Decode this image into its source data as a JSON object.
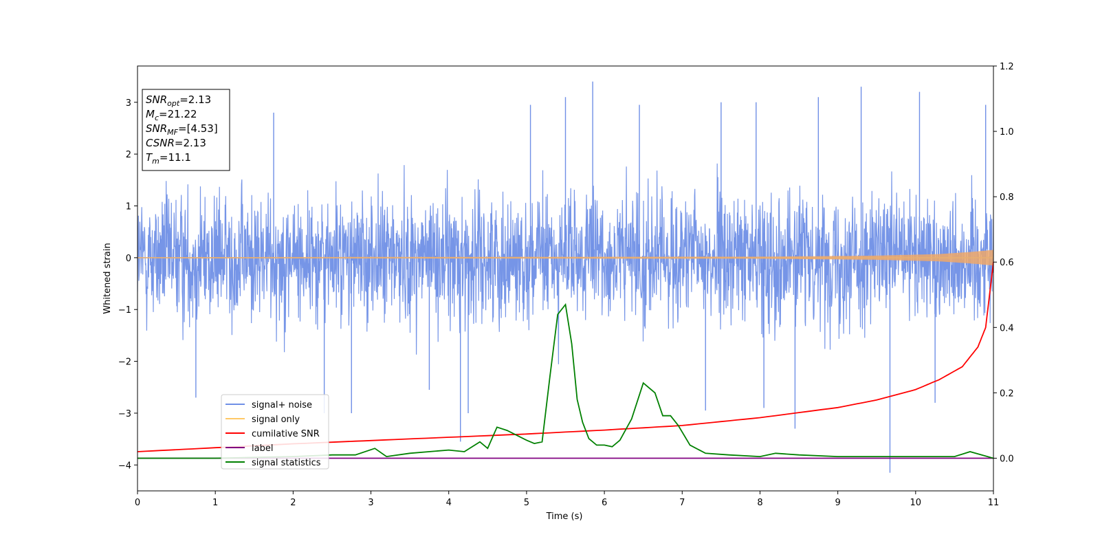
{
  "chart_data": {
    "type": "line",
    "xlabel": "Time (s)",
    "ylabel": "Whitened strain",
    "xlim": [
      0,
      11
    ],
    "ylim_left": [
      -4.5,
      3.7
    ],
    "ylim_right": [
      -0.1,
      1.2
    ],
    "x_ticks": [
      "0",
      "1",
      "2",
      "3",
      "4",
      "5",
      "6",
      "7",
      "8",
      "9",
      "10",
      "11"
    ],
    "y_ticks_left": [
      "3",
      "2",
      "1",
      "0",
      "−1",
      "−2",
      "−3",
      "−4"
    ],
    "y_ticks_right": [
      "1.2",
      "1.0",
      "0.8",
      "0.6",
      "0.4",
      "0.2",
      "0.0"
    ],
    "info_box": [
      {
        "base": "SNR",
        "sub": "opt",
        "rest": "=2.13"
      },
      {
        "base": "M",
        "sub": "c",
        "rest": "=21.22"
      },
      {
        "base": "SNR",
        "sub": "MF",
        "rest": "=[4.53]"
      },
      {
        "base": "CSNR",
        "sub": "",
        "rest": "=2.13"
      },
      {
        "base": "T",
        "sub": "m",
        "rest": "=11.1"
      }
    ],
    "legend": {
      "placement": "lower-left",
      "entries": [
        {
          "label": "signal+ noise",
          "color": "#6f8fe6"
        },
        {
          "label": "signal only",
          "color": "#ffc866"
        },
        {
          "label": "cumilative SNR",
          "color": "#ff0000"
        },
        {
          "label": "label",
          "color": "#800080"
        },
        {
          "label": "signal statistics",
          "color": "#008000"
        }
      ]
    },
    "series": [
      {
        "name": "signal+ noise",
        "axis": "left",
        "color": "#6f8fe6",
        "description_envelope": {
          "typical_amplitude": 1.6,
          "max": 3.4,
          "min": -4.15
        },
        "spikes": [
          [
            0.75,
            -2.7
          ],
          [
            1.75,
            2.8
          ],
          [
            2.4,
            -3.0
          ],
          [
            2.75,
            -3.0
          ],
          [
            3.75,
            -2.55
          ],
          [
            4.15,
            -3.55
          ],
          [
            4.25,
            -3.0
          ],
          [
            5.05,
            2.95
          ],
          [
            5.5,
            3.1
          ],
          [
            5.85,
            3.4
          ],
          [
            6.45,
            2.95
          ],
          [
            7.3,
            -2.95
          ],
          [
            7.5,
            3.0
          ],
          [
            7.95,
            3.0
          ],
          [
            8.05,
            -2.9
          ],
          [
            8.45,
            -3.3
          ],
          [
            8.75,
            3.1
          ],
          [
            9.3,
            3.3
          ],
          [
            9.67,
            -4.15
          ],
          [
            10.05,
            3.2
          ],
          [
            10.25,
            -2.8
          ],
          [
            10.9,
            2.95
          ]
        ]
      },
      {
        "name": "signal only",
        "axis": "left",
        "color": "#ffc866",
        "envelope": [
          [
            0,
            0.01
          ],
          [
            8.0,
            0.02
          ],
          [
            9.5,
            0.04
          ],
          [
            10.3,
            0.07
          ],
          [
            10.7,
            0.11
          ],
          [
            11.0,
            0.15
          ]
        ]
      },
      {
        "name": "cumilative SNR",
        "axis": "right",
        "color": "#ff0000",
        "x": [
          0,
          1,
          2,
          3,
          4,
          5,
          6,
          7,
          8,
          9,
          9.5,
          10,
          10.3,
          10.6,
          10.8,
          10.9,
          11.0
        ],
        "y": [
          0.02,
          0.032,
          0.044,
          0.054,
          0.064,
          0.074,
          0.086,
          0.1,
          0.124,
          0.155,
          0.178,
          0.21,
          0.24,
          0.28,
          0.34,
          0.4,
          0.6
        ]
      },
      {
        "name": "label",
        "axis": "right",
        "color": "#800080",
        "x": [
          0,
          11
        ],
        "y": [
          0,
          0
        ]
      },
      {
        "name": "signal statistics",
        "axis": "right",
        "color": "#008000",
        "x": [
          0,
          1,
          2,
          2.5,
          2.8,
          3.05,
          3.2,
          3.5,
          4.0,
          4.2,
          4.4,
          4.5,
          4.62,
          4.75,
          5.0,
          5.1,
          5.2,
          5.3,
          5.4,
          5.5,
          5.58,
          5.65,
          5.72,
          5.8,
          5.9,
          6.0,
          6.1,
          6.2,
          6.35,
          6.5,
          6.65,
          6.75,
          6.85,
          6.95,
          7.1,
          7.3,
          7.6,
          8.0,
          8.2,
          8.5,
          9.0,
          9.5,
          10.0,
          10.5,
          10.7,
          11.0
        ],
        "y": [
          0.0,
          0.0,
          0.005,
          0.01,
          0.01,
          0.03,
          0.005,
          0.015,
          0.025,
          0.02,
          0.05,
          0.03,
          0.095,
          0.085,
          0.055,
          0.045,
          0.05,
          0.25,
          0.44,
          0.47,
          0.35,
          0.18,
          0.11,
          0.06,
          0.04,
          0.04,
          0.035,
          0.055,
          0.12,
          0.23,
          0.2,
          0.13,
          0.13,
          0.1,
          0.04,
          0.015,
          0.01,
          0.005,
          0.015,
          0.01,
          0.005,
          0.005,
          0.005,
          0.005,
          0.02,
          0.0
        ]
      }
    ]
  }
}
